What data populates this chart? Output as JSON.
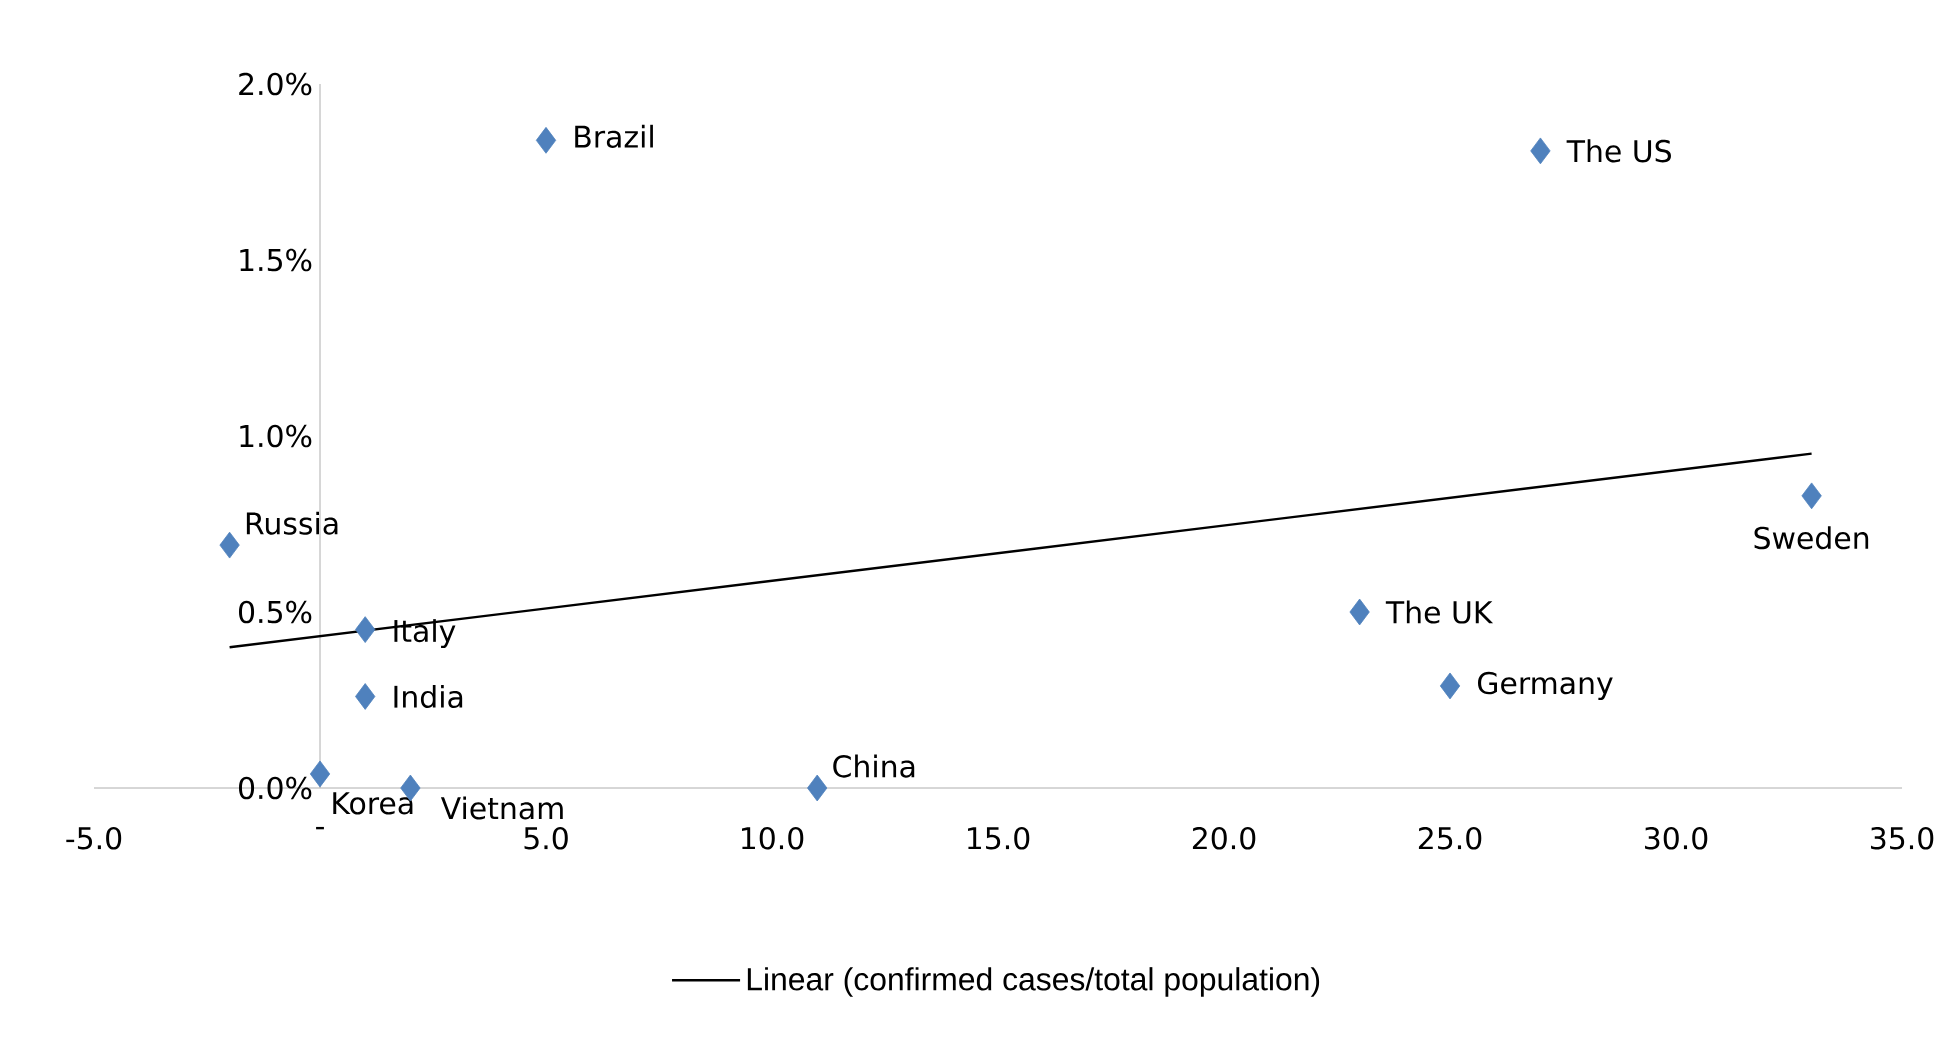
{
  "chart_data": {
    "type": "scatter",
    "xlim": [
      -5,
      35
    ],
    "ylim": [
      0,
      2.0
    ],
    "xticks": [
      {
        "value": -5,
        "label": "-5.0"
      },
      {
        "value": 0,
        "label": "-"
      },
      {
        "value": 5,
        "label": "5.0"
      },
      {
        "value": 10,
        "label": "10.0"
      },
      {
        "value": 15,
        "label": "15.0"
      },
      {
        "value": 20,
        "label": "20.0"
      },
      {
        "value": 25,
        "label": "25.0"
      },
      {
        "value": 30,
        "label": "30.0"
      },
      {
        "value": 35,
        "label": "35.0"
      }
    ],
    "yticks": [
      {
        "value": 0,
        "label": "0.0%"
      },
      {
        "value": 0.5,
        "label": "0.5%"
      },
      {
        "value": 1.0,
        "label": "1.0%"
      },
      {
        "value": 1.5,
        "label": "1.5%"
      },
      {
        "value": 2.0,
        "label": "2.0%"
      }
    ],
    "series": [
      {
        "type": "scatter",
        "color": "#4f81bd",
        "marker": "diamond",
        "x": [
          5.0,
          27.0,
          -2.0,
          1.0,
          1.0,
          0,
          2.0,
          11.0,
          23.0,
          25.0,
          33.0
        ],
        "values": [
          1.84,
          1.81,
          0.69,
          0.45,
          0.26,
          0.04,
          0.0,
          0.0,
          0.5,
          0.29,
          0.83
        ]
      },
      {
        "type": "line",
        "name": "Linear (confirmed cases/total population)",
        "color": "#000000",
        "x": [
          -2.0,
          33.0
        ],
        "values": [
          0.4,
          0.95
        ]
      }
    ],
    "annotations": [
      {
        "text": "Brazil",
        "x": 5.0,
        "y": 1.84
      },
      {
        "text": "The US",
        "x": 27.0,
        "y": 1.81
      },
      {
        "text": "Russia",
        "x": -2.0,
        "y": 0.69
      },
      {
        "text": "Italy",
        "x": 1.0,
        "y": 0.45
      },
      {
        "text": "India",
        "x": 1.0,
        "y": 0.26
      },
      {
        "text": "Korea",
        "x": 0,
        "y": 0.04
      },
      {
        "text": "Vietnam",
        "x": 2.0,
        "y": 0.0
      },
      {
        "text": "China",
        "x": 11.0,
        "y": 0.0
      },
      {
        "text": "The UK",
        "x": 23.0,
        "y": 0.5
      },
      {
        "text": "Germany",
        "x": 25.0,
        "y": 0.29
      },
      {
        "text": "Sweden",
        "x": 33.0,
        "y": 0.83
      }
    ],
    "legend": "bottom",
    "grid": false
  }
}
